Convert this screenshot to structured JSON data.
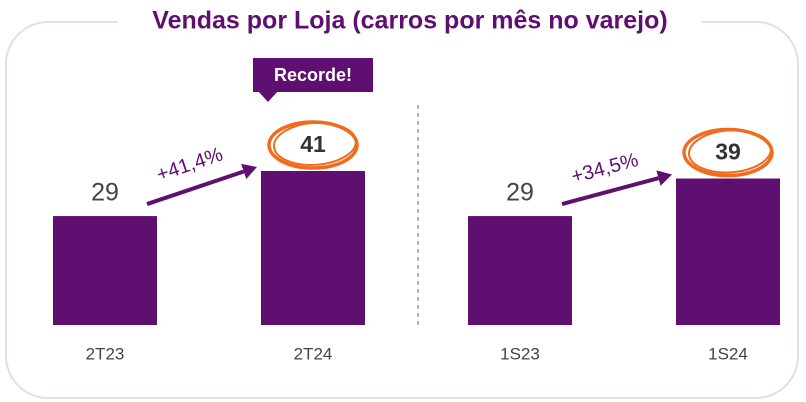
{
  "title": "Vendas por Loja (carros por mês no varejo)",
  "chart_data": [
    {
      "type": "bar",
      "categories": [
        "2T23",
        "2T24"
      ],
      "values": [
        29,
        41
      ],
      "color": "#5e0f70",
      "growth": "+41,4%",
      "callout": "Recorde!"
    },
    {
      "type": "bar",
      "categories": [
        "1S23",
        "1S24"
      ],
      "values": [
        29,
        39
      ],
      "color": "#5e0f70",
      "growth": "+34,5%"
    }
  ]
}
